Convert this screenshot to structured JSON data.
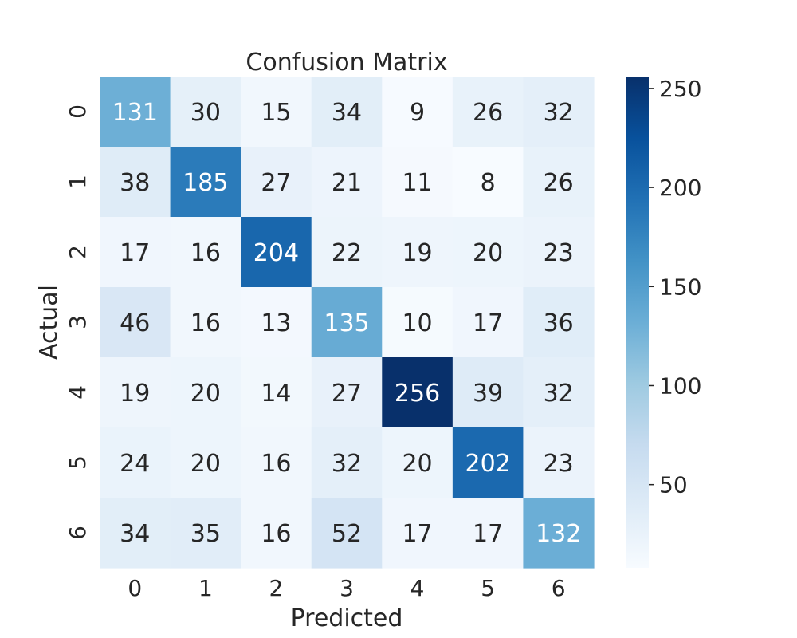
{
  "chart_data": {
    "type": "heatmap",
    "title": "Confusion Matrix",
    "xlabel": "Predicted",
    "ylabel": "Actual",
    "x_categories": [
      "0",
      "1",
      "2",
      "3",
      "4",
      "5",
      "6"
    ],
    "y_categories": [
      "0",
      "1",
      "2",
      "3",
      "4",
      "5",
      "6"
    ],
    "matrix": [
      [
        131,
        30,
        15,
        34,
        9,
        26,
        32
      ],
      [
        38,
        185,
        27,
        21,
        11,
        8,
        26
      ],
      [
        17,
        16,
        204,
        22,
        19,
        20,
        23
      ],
      [
        46,
        16,
        13,
        135,
        10,
        17,
        36
      ],
      [
        19,
        20,
        14,
        27,
        256,
        39,
        32
      ],
      [
        24,
        20,
        16,
        32,
        20,
        202,
        23
      ],
      [
        34,
        35,
        16,
        52,
        17,
        17,
        132
      ]
    ],
    "colormap": "Blues",
    "vmin": 8,
    "vmax": 256,
    "colorbar_ticks": [
      50,
      100,
      150,
      200,
      250
    ],
    "colors": {
      "low": "#f7fbff",
      "high": "#08306b",
      "text_dark": "#262626",
      "text_light": "#ffffff"
    },
    "grid": false,
    "annotations": true
  }
}
